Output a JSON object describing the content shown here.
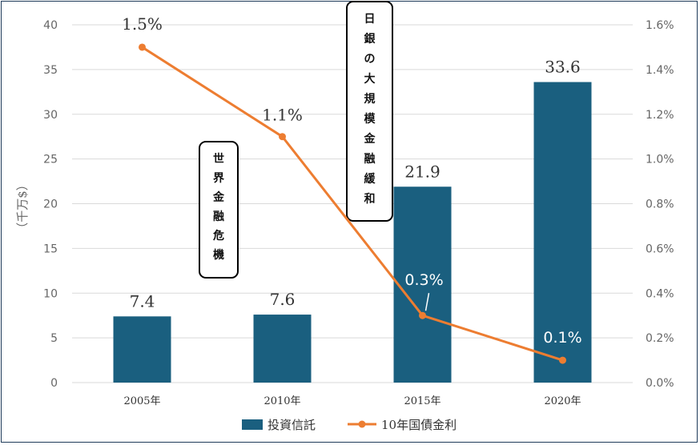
{
  "chart_data": {
    "type": "bar",
    "categories": [
      "2005年",
      "2010年",
      "2015年",
      "2020年"
    ],
    "series": [
      {
        "name": "投資信託",
        "type": "bar",
        "axis": "left",
        "values": [
          7.4,
          7.6,
          21.9,
          33.6
        ],
        "labels": [
          "7.4",
          "7.6",
          "21.9",
          "33.6"
        ],
        "color": "#1a5f7f"
      },
      {
        "name": "10年国債金利",
        "type": "line",
        "axis": "right",
        "values": [
          1.5,
          1.1,
          0.3,
          0.1
        ],
        "labels": [
          "1.5%",
          "1.1%",
          "0.3%",
          "0.1%"
        ],
        "color": "#ed7d31"
      }
    ],
    "ylabel": "（千万$）",
    "ylim": [
      0,
      40
    ],
    "yticks": [
      "0",
      "5",
      "10",
      "15",
      "20",
      "25",
      "30",
      "35",
      "40"
    ],
    "y2lim": [
      0,
      1.6
    ],
    "y2ticks": [
      "0.0%",
      "0.2%",
      "0.4%",
      "0.6%",
      "0.8%",
      "1.0%",
      "1.2%",
      "1.4%",
      "1.6%"
    ],
    "annotations": [
      "世界金融危機",
      "日銀の大規模金融緩和"
    ],
    "legend_position": "bottom"
  }
}
